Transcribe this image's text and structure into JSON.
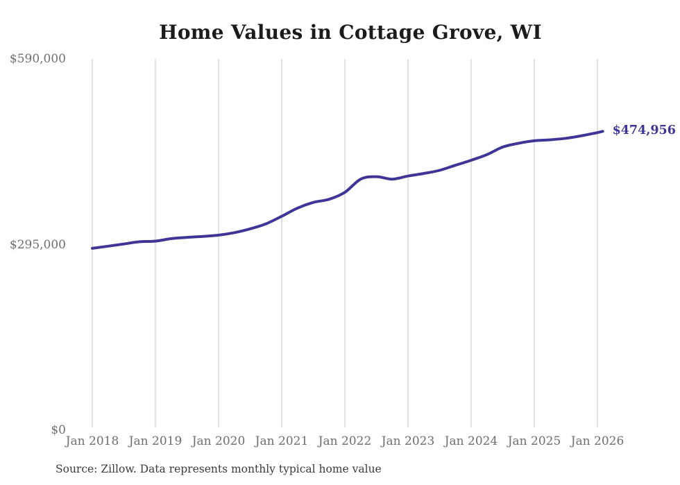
{
  "chart": {
    "title": "Home Values in Cottage Grove, WI",
    "source_note": "Source: Zillow. Data represents monthly typical home value",
    "colors": {
      "line": "#3e3596",
      "grid": "#c4c4c4",
      "axis_text": "#6e6e6e",
      "title_text": "#1b1b1b",
      "source_text": "#3b3b3b",
      "background": "#ffffff"
    }
  },
  "chart_data": {
    "type": "line",
    "title": "Home Values in Cottage Grove, WI",
    "series_name": "Monthly typical home value",
    "legend": "none",
    "grid": "vertical-only",
    "ylim": [
      0,
      590000
    ],
    "y_ticks": [
      {
        "label": "$590,000",
        "value": 590000
      },
      {
        "label": "$295,000",
        "value": 295000
      },
      {
        "label": "$0",
        "value": 0
      }
    ],
    "x_tick_labels": [
      "Jan 2018",
      "Jan 2019",
      "Jan 2020",
      "Jan 2021",
      "Jan 2022",
      "Jan 2023",
      "Jan 2024",
      "Jan 2025",
      "Jan 2026"
    ],
    "months": [
      "Jan 2018",
      "Apr 2018",
      "Jul 2018",
      "Oct 2018",
      "Jan 2019",
      "Apr 2019",
      "Jul 2019",
      "Oct 2019",
      "Jan 2020",
      "Apr 2020",
      "Jul 2020",
      "Oct 2020",
      "Jan 2021",
      "Apr 2021",
      "Jul 2021",
      "Oct 2021",
      "Jan 2022",
      "Apr 2022",
      "Jul 2022",
      "Oct 2022",
      "Jan 2023",
      "Apr 2023",
      "Jul 2023",
      "Oct 2023",
      "Jan 2024",
      "Apr 2024",
      "Jul 2024",
      "Oct 2024",
      "Jan 2025",
      "Apr 2025",
      "Jul 2025",
      "Oct 2025",
      "Jan 2026",
      "Feb 2026"
    ],
    "month_offsets": [
      0,
      3,
      6,
      9,
      12,
      15,
      18,
      21,
      24,
      27,
      30,
      33,
      36,
      39,
      42,
      45,
      48,
      51,
      54,
      57,
      60,
      63,
      66,
      69,
      72,
      75,
      78,
      81,
      84,
      87,
      90,
      93,
      96,
      97
    ],
    "values": [
      289000,
      292500,
      296000,
      299500,
      300500,
      304500,
      306500,
      308000,
      310000,
      314000,
      320000,
      328000,
      340000,
      353000,
      362000,
      367000,
      378000,
      399000,
      403000,
      399000,
      404000,
      408000,
      413000,
      421000,
      429000,
      438000,
      450000,
      456000,
      460000,
      461500,
      464000,
      468000,
      473000,
      474956
    ],
    "final_value": 474956,
    "final_value_label": "$474,956"
  }
}
